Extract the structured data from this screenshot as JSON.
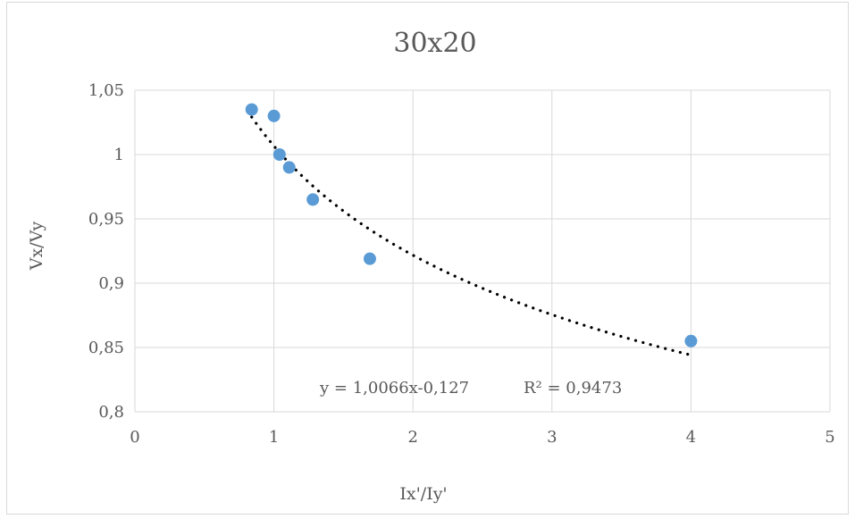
{
  "chart_data": {
    "type": "scatter",
    "title": "30x20",
    "xlabel": "Ix'/Iy'",
    "ylabel": "Vx/Vy",
    "xlim": [
      0,
      5
    ],
    "ylim": [
      0.8,
      1.05
    ],
    "x_ticks": [
      0,
      1,
      2,
      3,
      4,
      5
    ],
    "x_tick_labels": [
      "0",
      "1",
      "2",
      "3",
      "4",
      "5"
    ],
    "y_ticks": [
      0.8,
      0.85,
      0.9,
      0.95,
      1.0,
      1.05
    ],
    "y_tick_labels": [
      "0,8",
      "0,85",
      "0,9",
      "0,95",
      "1",
      "1,05"
    ],
    "grid": true,
    "legend": "none",
    "series": [
      {
        "color": "#5b9bd5",
        "x": [
          0.84,
          1.0,
          1.04,
          1.11,
          1.28,
          1.69,
          4.0
        ],
        "y": [
          1.035,
          1.03,
          1.0,
          0.99,
          0.965,
          0.919,
          0.855
        ]
      }
    ],
    "trendline": {
      "type": "power",
      "coefficient": 1.0066,
      "exponent": -0.127,
      "x_range": [
        0.84,
        4.0
      ],
      "style": "dotted",
      "color": "#000000",
      "equation_label": "y = 1,0066x-0,127",
      "r2_label": "R² = 0,9473"
    },
    "colors": {
      "grid": "#d9d9d9",
      "text": "#595959",
      "border": "#d9d9d9"
    }
  }
}
